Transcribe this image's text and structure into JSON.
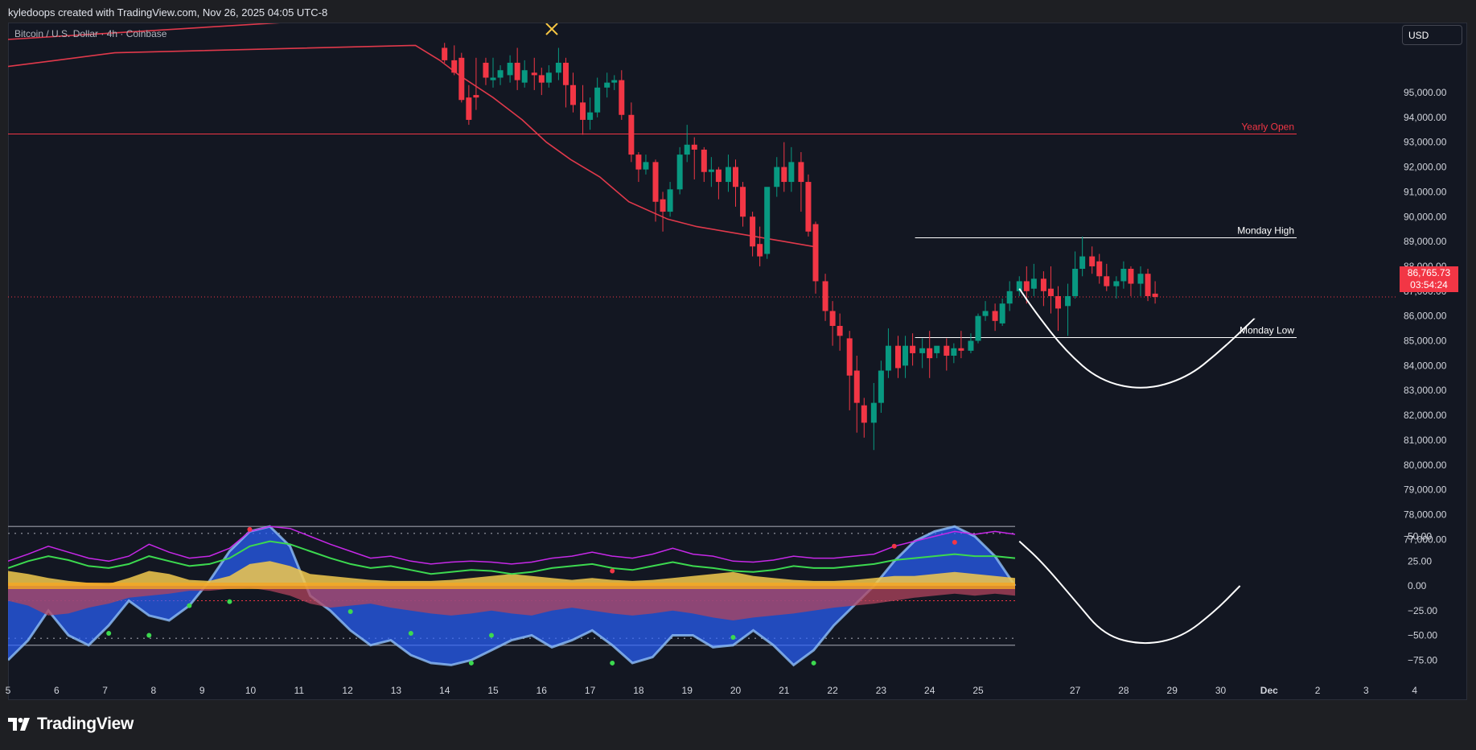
{
  "header": {
    "attribution": "kyledoops created with TradingView.com, Nov 26, 2025 04:05 UTC-8"
  },
  "symbol": {
    "title": "Bitcoin / U.S. Dollar · 4h · Coinbase"
  },
  "currency_button": "USD",
  "brand": {
    "name": "TradingView"
  },
  "current_price": {
    "price": "86,765.73",
    "countdown": "03:54:24",
    "value": 86765.73
  },
  "colors": {
    "bull": "#089981",
    "bear": "#f23645",
    "ma": "#e0394b",
    "background": "#131722"
  },
  "chart_data": [
    {
      "type": "candlestick",
      "title": "Bitcoin / U.S. Dollar · 4h · Coinbase",
      "ylim": [
        76500,
        96700
      ],
      "y_tick_labels": [
        "95,000.00",
        "94,000.00",
        "93,000.00",
        "92,000.00",
        "91,000.00",
        "90,000.00",
        "89,000.00",
        "88,000.00",
        "87,000.00",
        "86,000.00",
        "85,000.00",
        "84,000.00",
        "83,000.00",
        "82,000.00",
        "81,000.00",
        "80,000.00",
        "79,000.00",
        "78,000.00",
        "77,000.00"
      ],
      "y_ticks": [
        95000,
        94000,
        93000,
        92000,
        91000,
        90000,
        89000,
        88000,
        87000,
        86000,
        85000,
        84000,
        83000,
        82000,
        81000,
        80000,
        79000,
        78000,
        77000
      ],
      "x_tick_labels": [
        "5",
        "6",
        "7",
        "8",
        "9",
        "10",
        "11",
        "12",
        "13",
        "14",
        "15",
        "16",
        "17",
        "18",
        "19",
        "20",
        "21",
        "22",
        "23",
        "24",
        "25",
        "27",
        "28",
        "29",
        "30",
        "Dec",
        "2",
        "3",
        "4"
      ],
      "x_tick_days": [
        5,
        6,
        7,
        8,
        9,
        10,
        11,
        12,
        13,
        14,
        15,
        16,
        17,
        18,
        19,
        20,
        21,
        22,
        23,
        24,
        25,
        27,
        28,
        29,
        30,
        31,
        32,
        33,
        34
      ],
      "levels": [
        {
          "label": "Yearly Open",
          "value": 93350,
          "color": "#f23645",
          "full_width": true
        },
        {
          "label": "Monday High",
          "value": 89150,
          "color": "#ffffff",
          "from_day": 23.7
        },
        {
          "label": "Monday Low",
          "value": 85150,
          "color": "#ffffff",
          "from_day": 23.7
        }
      ],
      "candles": [
        [
          14.0,
          96800,
          97000,
          96300,
          96200
        ],
        [
          14.2,
          96300,
          96900,
          95800,
          95700
        ],
        [
          14.35,
          96400,
          96600,
          94700,
          94600
        ],
        [
          14.5,
          94800,
          95300,
          93900,
          93700
        ],
        [
          14.65,
          94900,
          96400,
          94800,
          94300
        ],
        [
          14.85,
          96200,
          96400,
          95600,
          95300
        ],
        [
          15.0,
          95500,
          96400,
          95600,
          95200
        ],
        [
          15.15,
          95600,
          96100,
          95900,
          95300
        ],
        [
          15.35,
          95700,
          96500,
          96200,
          95400
        ],
        [
          15.5,
          96200,
          96800,
          95500,
          95100
        ],
        [
          15.65,
          95400,
          96300,
          95900,
          95200
        ],
        [
          15.85,
          95800,
          96400,
          95700,
          95100
        ],
        [
          16.0,
          95700,
          96000,
          95400,
          94900
        ],
        [
          16.15,
          95400,
          96100,
          95800,
          95200
        ],
        [
          16.35,
          95800,
          96800,
          96200,
          95500
        ],
        [
          16.5,
          96200,
          96400,
          95300,
          94400
        ],
        [
          16.65,
          95300,
          95800,
          94500,
          94200
        ],
        [
          16.85,
          94600,
          95300,
          93900,
          93300
        ],
        [
          17.0,
          93900,
          94800,
          94200,
          93500
        ],
        [
          17.15,
          94200,
          95600,
          95200,
          94000
        ],
        [
          17.35,
          95200,
          95800,
          95400,
          94800
        ],
        [
          17.5,
          95400,
          95700,
          95500,
          95100
        ],
        [
          17.65,
          95500,
          95900,
          94100,
          93900
        ],
        [
          17.85,
          94100,
          94600,
          92500,
          92200
        ],
        [
          18.0,
          92500,
          92600,
          91900,
          91400
        ],
        [
          18.15,
          91900,
          92500,
          92200,
          91700
        ],
        [
          18.35,
          92200,
          92300,
          90600,
          89800
        ],
        [
          18.5,
          90700,
          91000,
          90200,
          89400
        ],
        [
          18.65,
          90200,
          91400,
          91100,
          90000
        ],
        [
          18.85,
          91100,
          92800,
          92500,
          90900
        ],
        [
          19.0,
          92500,
          93700,
          92900,
          92200
        ],
        [
          19.15,
          92900,
          93200,
          92700,
          91500
        ],
        [
          19.35,
          92700,
          92800,
          91800,
          91400
        ],
        [
          19.5,
          91800,
          92400,
          91900,
          91200
        ],
        [
          19.65,
          91900,
          92000,
          91400,
          90700
        ],
        [
          19.85,
          91400,
          92500,
          92000,
          91000
        ],
        [
          20.0,
          92000,
          92300,
          91200,
          90400
        ],
        [
          20.15,
          91200,
          91400,
          90000,
          89600
        ],
        [
          20.35,
          90000,
          90200,
          88800,
          88400
        ],
        [
          20.5,
          88900,
          89600,
          88400,
          88000
        ],
        [
          20.65,
          88500,
          90200,
          91200,
          88300
        ],
        [
          20.85,
          91200,
          92400,
          92000,
          90800
        ],
        [
          21.0,
          92000,
          93000,
          91400,
          91000
        ],
        [
          21.15,
          91400,
          92800,
          92200,
          91000
        ],
        [
          21.35,
          92200,
          92600,
          91400,
          90200
        ],
        [
          21.5,
          91400,
          91700,
          89400,
          89200
        ],
        [
          21.65,
          89700,
          89800,
          87400,
          86900
        ],
        [
          21.85,
          87400,
          87700,
          86200,
          85800
        ],
        [
          22.0,
          86200,
          86600,
          85600,
          84800
        ],
        [
          22.15,
          85600,
          86100,
          85200,
          84600
        ],
        [
          22.35,
          85100,
          85400,
          83600,
          82200
        ],
        [
          22.5,
          83800,
          84400,
          82500,
          81300
        ],
        [
          22.65,
          82400,
          82700,
          81700,
          81100
        ],
        [
          22.85,
          81700,
          83300,
          82500,
          80600
        ],
        [
          23.0,
          82500,
          84200,
          83800,
          82100
        ],
        [
          23.15,
          83800,
          85500,
          84800,
          83500
        ],
        [
          23.35,
          84800,
          85200,
          83900,
          83500
        ],
        [
          23.5,
          84000,
          85200,
          84800,
          83500
        ],
        [
          23.65,
          84800,
          85300,
          84500,
          84000
        ],
        [
          23.85,
          84500,
          85100,
          84700,
          83900
        ],
        [
          24.0,
          84700,
          85400,
          84300,
          83500
        ],
        [
          24.15,
          84500,
          84700,
          84800,
          84300
        ],
        [
          24.35,
          84800,
          85100,
          84400,
          83800
        ],
        [
          24.5,
          84400,
          84900,
          84700,
          84100
        ],
        [
          24.65,
          84700,
          85400,
          84600,
          84300
        ],
        [
          24.85,
          84600,
          85300,
          85000,
          84500
        ],
        [
          25.0,
          85000,
          86100,
          86000,
          84900
        ],
        [
          25.15,
          86000,
          86600,
          86200,
          85800
        ],
        [
          25.35,
          86200,
          86500,
          85800,
          85400
        ],
        [
          25.5,
          85700,
          86700,
          86500,
          85600
        ],
        [
          25.65,
          86500,
          87400,
          87000,
          86200
        ],
        [
          25.85,
          87000,
          87600,
          87400,
          86800
        ],
        [
          26.0,
          87400,
          88000,
          87000,
          86500
        ],
        [
          26.15,
          87100,
          88100,
          87500,
          86800
        ],
        [
          26.35,
          87500,
          87800,
          87000,
          86400
        ],
        [
          26.5,
          87100,
          88000,
          86800,
          86100
        ],
        [
          26.65,
          86800,
          87200,
          86300,
          85400
        ],
        [
          26.85,
          86400,
          87300,
          86800,
          85200
        ],
        [
          27.0,
          86800,
          88600,
          87900,
          86700
        ],
        [
          27.15,
          87900,
          89200,
          88400,
          87600
        ],
        [
          27.35,
          88400,
          88800,
          88000,
          87700
        ],
        [
          27.5,
          88200,
          88500,
          87600,
          87300
        ],
        [
          27.65,
          87600,
          88100,
          87200,
          87000
        ],
        [
          27.85,
          87200,
          87600,
          87400,
          86700
        ],
        [
          28.0,
          87400,
          88200,
          87900,
          87100
        ],
        [
          28.15,
          87900,
          88000,
          87300,
          86800
        ],
        [
          28.35,
          87300,
          88000,
          87700,
          86800
        ],
        [
          28.5,
          87700,
          87900,
          86800,
          86600
        ],
        [
          28.65,
          86900,
          87400,
          86766,
          86500
        ]
      ],
      "moving_average": [
        [
          5.0,
          96050
        ],
        [
          6.0,
          96300
        ],
        [
          7.2,
          96600
        ],
        [
          13.4,
          96900
        ],
        [
          13.9,
          96300
        ],
        [
          14.3,
          95700
        ],
        [
          15.0,
          94800
        ],
        [
          15.6,
          93900
        ],
        [
          16.1,
          93000
        ],
        [
          16.6,
          92300
        ],
        [
          17.2,
          91600
        ],
        [
          17.8,
          90600
        ],
        [
          18.6,
          89900
        ],
        [
          19.2,
          89600
        ],
        [
          20.1,
          89300
        ],
        [
          21.0,
          89000
        ],
        [
          21.6,
          88800
        ]
      ],
      "projection_path": [
        [
          25.85,
          87100
        ],
        [
          26.2,
          86100
        ],
        [
          26.8,
          84600
        ],
        [
          27.5,
          83400
        ],
        [
          28.4,
          83000
        ],
        [
          29.3,
          83500
        ],
        [
          30.0,
          84600
        ],
        [
          30.7,
          85900
        ]
      ]
    },
    {
      "type": "oscillator",
      "ylim": [
        -75,
        50
      ],
      "y_tick_labels": [
        "50.00",
        "25.00",
        "0.00",
        "−25.00",
        "−50.00",
        "−75.00"
      ],
      "y_ticks": [
        50,
        25,
        0,
        -25,
        -50,
        -75
      ],
      "bands": [
        60,
        53,
        -53,
        -60
      ],
      "series": [
        {
          "key": "wave",
          "values": [
            -75,
            -55,
            -25,
            -50,
            -60,
            -40,
            -15,
            -30,
            -35,
            -20,
            5,
            35,
            55,
            60,
            40,
            -10,
            -25,
            -45,
            -60,
            -55,
            -70,
            -78,
            -80,
            -75,
            -65,
            -55,
            -50,
            -62,
            -55,
            -45,
            -60,
            -78,
            -72,
            -50,
            -50,
            -62,
            -60,
            -45,
            -60,
            -80,
            -65,
            -40,
            -20,
            0,
            25,
            45,
            55,
            60,
            50,
            30,
            0
          ]
        },
        {
          "key": "money_flow_top",
          "values": [
            15,
            12,
            8,
            5,
            3,
            2,
            8,
            15,
            12,
            6,
            5,
            10,
            22,
            25,
            20,
            12,
            10,
            8,
            6,
            5,
            5,
            5,
            6,
            8,
            10,
            12,
            10,
            8,
            6,
            8,
            6,
            5,
            6,
            8,
            10,
            12,
            14,
            10,
            8,
            6,
            5,
            5,
            6,
            8,
            10,
            10,
            12,
            14,
            12,
            10,
            8
          ]
        },
        {
          "key": "money_flow_bottom",
          "values": [
            -15,
            -20,
            -30,
            -28,
            -22,
            -18,
            -12,
            -10,
            -8,
            -5,
            -5,
            -3,
            -2,
            -5,
            -10,
            -18,
            -22,
            -20,
            -18,
            -22,
            -25,
            -28,
            -30,
            -28,
            -25,
            -28,
            -30,
            -25,
            -22,
            -25,
            -28,
            -30,
            -28,
            -25,
            -28,
            -32,
            -35,
            -32,
            -30,
            -28,
            -25,
            -22,
            -20,
            -18,
            -15,
            -12,
            -10,
            -8,
            -10,
            -8,
            -10
          ]
        },
        {
          "key": "green_line",
          "values": [
            18,
            25,
            30,
            26,
            20,
            18,
            22,
            30,
            25,
            20,
            22,
            28,
            40,
            45,
            42,
            35,
            28,
            22,
            18,
            20,
            16,
            12,
            14,
            16,
            15,
            12,
            14,
            18,
            20,
            22,
            18,
            16,
            20,
            24,
            20,
            18,
            15,
            14,
            16,
            20,
            18,
            18,
            20,
            22,
            26,
            28,
            30,
            32,
            30,
            30,
            28
          ]
        },
        {
          "key": "purple_line",
          "values": [
            25,
            32,
            40,
            34,
            28,
            25,
            30,
            42,
            34,
            28,
            30,
            38,
            55,
            60,
            58,
            50,
            42,
            35,
            28,
            30,
            25,
            22,
            24,
            25,
            24,
            22,
            24,
            28,
            30,
            34,
            30,
            28,
            32,
            38,
            32,
            30,
            25,
            24,
            26,
            30,
            28,
            28,
            30,
            32,
            40,
            45,
            50,
            55,
            52,
            55,
            52
          ]
        }
      ],
      "projection_path": [
        [
          25.85,
          45
        ],
        [
          26.3,
          25
        ],
        [
          27.0,
          -15
        ],
        [
          27.6,
          -50
        ],
        [
          28.4,
          -60
        ],
        [
          29.2,
          -52
        ],
        [
          29.9,
          -25
        ],
        [
          30.4,
          0
        ]
      ]
    }
  ]
}
